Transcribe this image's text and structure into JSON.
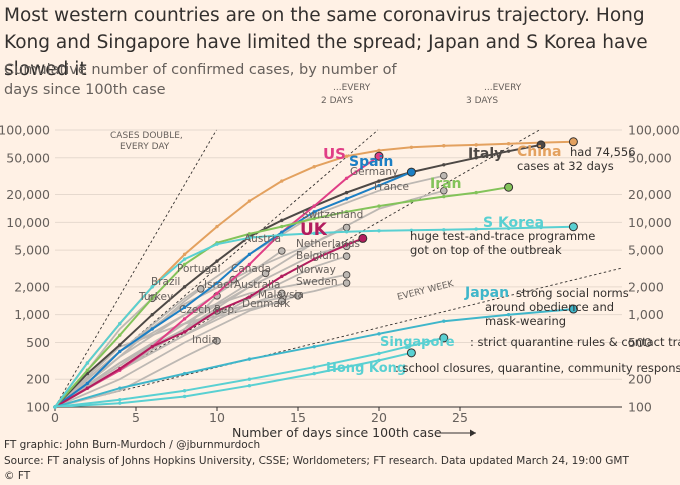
{
  "title": "Most western countries are on the same coronavirus trajectory. Hong Kong and Singapore have limited the spread; Japan and S Korea have slowed it",
  "subtitle": "Cumulative number of confirmed cases, by number of days since 100th case",
  "xlabel": "Number of days since 100th case",
  "credit": "FT graphic: John Burn-Murdoch / @jburnmurdoch",
  "source": "Source: FT analysis of Johns Hopkins University, CSSE; Worldometers; FT research. Data updated March 24, 19:00 GMT",
  "copyright": "© FT",
  "colors": {
    "background": "#fff1e5",
    "grey": "#bdb8b3",
    "china": "#e3a15f",
    "italy": "#4d4845",
    "us": "#e03e86",
    "spain": "#1c7fc4",
    "uk": "#b31c5e",
    "iran": "#83c35a",
    "south_korea": "#59d0d2",
    "japan": "#3fb6ca",
    "singapore": "#59d0d2",
    "hong_kong": "#59d0d2"
  },
  "annotations": {
    "doubling_1": "CASES DOUBLE,",
    "doubling_1b": "EVERY DAY",
    "doubling_2a": "...EVERY",
    "doubling_2b": "2 DAYS",
    "doubling_3a": "...EVERY",
    "doubling_3b": "3 DAYS",
    "doubling_7": "EVERY WEEK",
    "china_note_1": "had 74,556",
    "china_note_2": "cases at 32 days",
    "korea_note_1": "huge test-and-trace programme",
    "korea_note_2": "got on top of the outbreak",
    "japan_note_1": "strong social norms",
    "japan_note_2": "around obedience and",
    "japan_note_3": "mask-wearing",
    "singapore_note": ": strict quarantine rules & contact tracing",
    "hongkong_note": ": school closures, quarantine, community response"
  },
  "chart_data": {
    "type": "line",
    "title": "Most western countries are on the same coronavirus trajectory. Hong Kong and Singapore have limited the spread; Japan and S Korea have slowed it",
    "subtitle": "Cumulative number of confirmed cases, by number of days since 100th case",
    "xlabel": "Number of days since 100th case",
    "ylabel": "",
    "x_scale": "linear",
    "y_scale": "log",
    "xlim": [
      0,
      35
    ],
    "ylim": [
      100,
      100000
    ],
    "x_ticks": [
      0,
      5,
      10,
      15,
      20,
      25
    ],
    "y_ticks": [
      100,
      200,
      500,
      1000,
      2000,
      5000,
      10000,
      20000,
      50000,
      100000
    ],
    "y_tick_labels": [
      "100",
      "200",
      "500",
      "1,000",
      "2,000",
      "5,000",
      "10,000",
      "20,000",
      "50,000",
      "100,000"
    ],
    "grid": true,
    "legend": "direct labels",
    "reference_lines": [
      {
        "label": "CASES DOUBLE, EVERY DAY",
        "doubling_days": 1
      },
      {
        "label": "...EVERY 2 DAYS",
        "doubling_days": 2
      },
      {
        "label": "...EVERY 3 DAYS",
        "doubling_days": 3
      },
      {
        "label": "EVERY WEEK",
        "doubling_days": 7
      }
    ],
    "series": [
      {
        "name": "China",
        "highlight": true,
        "color_key": "china",
        "x": [
          0,
          2,
          4,
          6,
          8,
          10,
          12,
          14,
          16,
          18,
          20,
          22,
          24,
          26,
          28,
          30,
          32
        ],
        "y": [
          100,
          300,
          800,
          2000,
          4500,
          9000,
          17000,
          28000,
          40000,
          52000,
          60000,
          65000,
          67500,
          69000,
          71000,
          73000,
          74556
        ]
      },
      {
        "name": "Italy",
        "highlight": true,
        "color_key": "italy",
        "x": [
          0,
          2,
          4,
          6,
          8,
          10,
          12,
          14,
          16,
          18,
          20,
          22,
          24,
          26,
          28,
          30
        ],
        "y": [
          100,
          230,
          470,
          1000,
          2000,
          3800,
          7000,
          10500,
          15000,
          21000,
          28000,
          35000,
          42000,
          50000,
          59000,
          69000
        ]
      },
      {
        "name": "US",
        "highlight": true,
        "color_key": "us",
        "x": [
          0,
          2,
          4,
          6,
          8,
          10,
          12,
          14,
          16,
          18,
          20
        ],
        "y": [
          100,
          160,
          250,
          450,
          900,
          1700,
          3500,
          7800,
          15000,
          30000,
          52000
        ]
      },
      {
        "name": "Spain",
        "highlight": true,
        "color_key": "spain",
        "x": [
          0,
          2,
          4,
          6,
          8,
          10,
          12,
          14,
          16,
          18,
          20,
          22
        ],
        "y": [
          100,
          180,
          400,
          700,
          1200,
          2200,
          4500,
          7800,
          13000,
          18000,
          25000,
          35000
        ]
      },
      {
        "name": "UK",
        "highlight": true,
        "color_key": "uk",
        "x": [
          0,
          2,
          4,
          6,
          8,
          10,
          12,
          14,
          16,
          18,
          19
        ],
        "y": [
          100,
          160,
          260,
          450,
          650,
          1100,
          1550,
          2600,
          4000,
          5700,
          6700
        ]
      },
      {
        "name": "Iran",
        "highlight": true,
        "color_key": "iran",
        "x": [
          0,
          2,
          4,
          6,
          8,
          10,
          12,
          14,
          16,
          18,
          20,
          22,
          24,
          26,
          28
        ],
        "y": [
          100,
          250,
          600,
          1500,
          3500,
          6000,
          7500,
          9000,
          11000,
          13000,
          15000,
          17000,
          19000,
          21000,
          24000
        ]
      },
      {
        "name": "S Korea",
        "highlight": true,
        "color_key": "south_korea",
        "x": [
          0,
          2,
          4,
          6,
          8,
          10,
          12,
          14,
          16,
          18,
          20,
          22,
          24,
          26,
          28,
          30,
          32
        ],
        "y": [
          100,
          300,
          800,
          2000,
          4000,
          5800,
          6800,
          7300,
          7600,
          7900,
          8100,
          8200,
          8300,
          8450,
          8600,
          8800,
          8961
        ]
      },
      {
        "name": "Japan",
        "highlight": true,
        "color_key": "japan",
        "x": [
          0,
          4,
          8,
          12,
          16,
          20,
          24,
          28,
          32
        ],
        "y": [
          100,
          160,
          230,
          330,
          450,
          620,
          850,
          1000,
          1150
        ]
      },
      {
        "name": "Singapore",
        "highlight": true,
        "color_key": "singapore",
        "x": [
          0,
          4,
          8,
          12,
          16,
          20,
          24
        ],
        "y": [
          100,
          120,
          150,
          200,
          270,
          380,
          560
        ]
      },
      {
        "name": "Hong Kong",
        "highlight": true,
        "color_key": "hong_kong",
        "x": [
          0,
          4,
          8,
          12,
          16,
          20,
          22
        ],
        "y": [
          100,
          110,
          130,
          170,
          230,
          320,
          386
        ]
      },
      {
        "name": "Germany",
        "highlight": false,
        "x": [
          0,
          4,
          8,
          12,
          16,
          20,
          24
        ],
        "y": [
          100,
          400,
          1500,
          4500,
          12000,
          22000,
          32000
        ]
      },
      {
        "name": "France",
        "highlight": false,
        "x": [
          0,
          4,
          8,
          12,
          16,
          20,
          24
        ],
        "y": [
          100,
          280,
          800,
          2200,
          6000,
          14000,
          22000
        ]
      },
      {
        "name": "Switzerland",
        "highlight": false,
        "x": [
          0,
          4,
          8,
          12,
          16,
          18
        ],
        "y": [
          100,
          400,
          1300,
          3000,
          6000,
          8800
        ]
      },
      {
        "name": "Austria",
        "highlight": false,
        "x": [
          0,
          4,
          8,
          12,
          14
        ],
        "y": [
          100,
          350,
          1000,
          2800,
          4900
        ]
      },
      {
        "name": "Netherlands",
        "highlight": false,
        "x": [
          0,
          4,
          8,
          12,
          16,
          18
        ],
        "y": [
          100,
          300,
          800,
          2000,
          4500,
          5500
        ]
      },
      {
        "name": "Belgium",
        "highlight": false,
        "x": [
          0,
          4,
          8,
          12,
          16,
          18
        ],
        "y": [
          100,
          250,
          600,
          1500,
          3300,
          4300
        ]
      },
      {
        "name": "Norway",
        "highlight": false,
        "x": [
          0,
          4,
          8,
          12,
          16,
          18
        ],
        "y": [
          100,
          400,
          1000,
          1700,
          2300,
          2700
        ]
      },
      {
        "name": "Sweden",
        "highlight": false,
        "x": [
          0,
          4,
          8,
          12,
          16,
          18
        ],
        "y": [
          100,
          300,
          800,
          1300,
          1800,
          2200
        ]
      },
      {
        "name": "Canada",
        "highlight": false,
        "x": [
          0,
          4,
          8,
          12,
          13
        ],
        "y": [
          100,
          250,
          700,
          2000,
          2800
        ]
      },
      {
        "name": "Portugal",
        "highlight": false,
        "x": [
          0,
          4,
          8,
          11
        ],
        "y": [
          100,
          400,
          1300,
          2400
        ]
      },
      {
        "name": "Brazil",
        "highlight": false,
        "x": [
          0,
          3,
          6,
          8,
          9
        ],
        "y": [
          100,
          250,
          700,
          1400,
          1900
        ]
      },
      {
        "name": "Israel",
        "highlight": false,
        "x": [
          0,
          4,
          8,
          10
        ],
        "y": [
          100,
          250,
          700,
          1600
        ]
      },
      {
        "name": "Australia",
        "highlight": false,
        "x": [
          0,
          4,
          8,
          12,
          14
        ],
        "y": [
          100,
          250,
          600,
          1300,
          1700
        ]
      },
      {
        "name": "Malaysia",
        "highlight": false,
        "x": [
          0,
          4,
          8,
          12,
          15
        ],
        "y": [
          100,
          200,
          500,
          1100,
          1600
        ]
      },
      {
        "name": "Denmark",
        "highlight": false,
        "x": [
          0,
          4,
          8,
          12,
          14
        ],
        "y": [
          100,
          450,
          800,
          1150,
          1400
        ]
      },
      {
        "name": "Turkey",
        "highlight": false,
        "x": [
          0,
          2,
          4,
          6
        ],
        "y": [
          100,
          250,
          700,
          1500
        ]
      },
      {
        "name": "Czech Rep.",
        "highlight": false,
        "x": [
          0,
          4,
          8,
          10
        ],
        "y": [
          100,
          300,
          700,
          1100
        ]
      },
      {
        "name": "India",
        "highlight": false,
        "x": [
          0,
          4,
          8,
          10
        ],
        "y": [
          100,
          150,
          350,
          520
        ]
      }
    ]
  }
}
